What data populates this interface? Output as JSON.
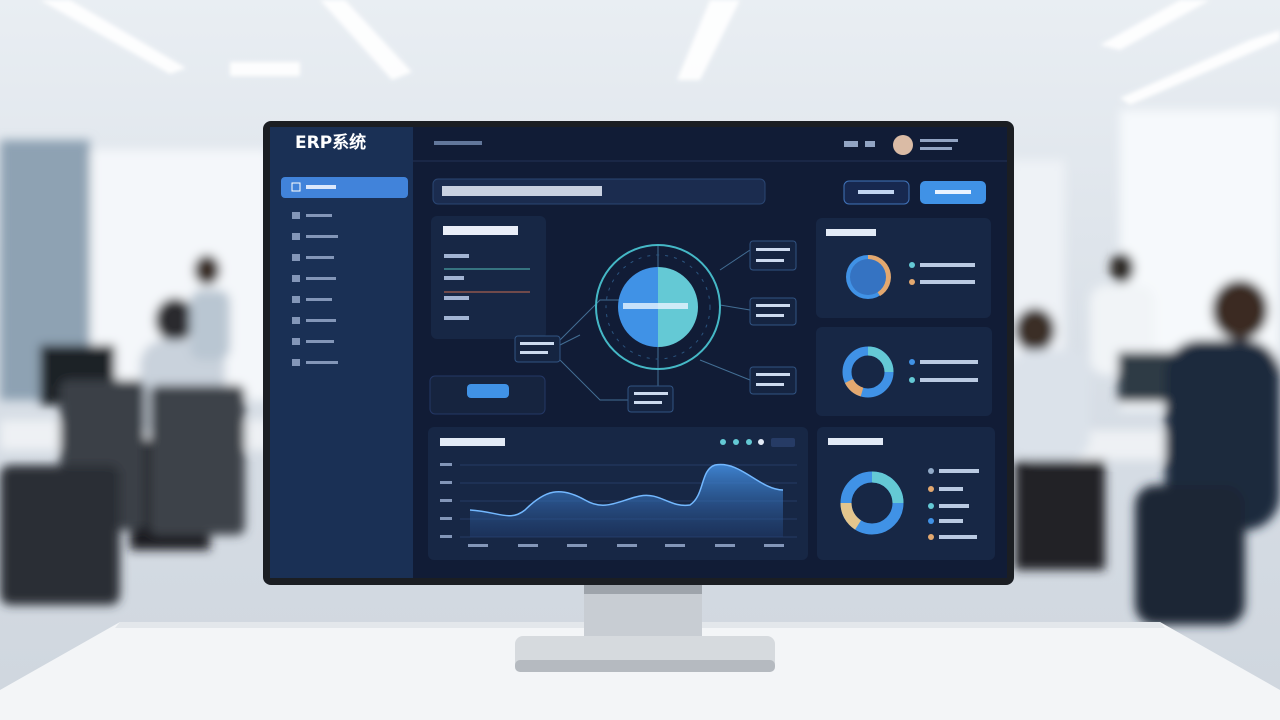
{
  "header": {
    "title": "ERP系统"
  }
}
